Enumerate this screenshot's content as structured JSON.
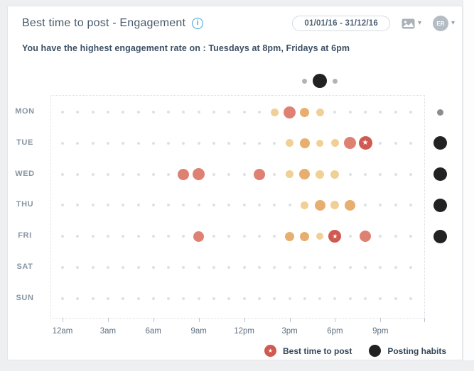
{
  "icons": {
    "star": "★",
    "caret": "▾",
    "info": "i"
  },
  "header": {
    "title": "Best time to post - Engagement",
    "date_range": "01/01/16 - 31/12/16",
    "avatar_initials": "ER"
  },
  "subtitle": "You have the highest engagement rate on : Tuesdays at 8pm, Fridays at 6pm",
  "legend": {
    "best_time": "Best time to post",
    "posting_habits": "Posting habits"
  },
  "chart_data": {
    "type": "scatter",
    "title": "Best time to post - Engagement",
    "x_tick_labels": [
      "12am",
      "3am",
      "6am",
      "9am",
      "12pm",
      "3pm",
      "6pm",
      "9pm"
    ],
    "x_tick_hours": [
      0,
      3,
      6,
      9,
      12,
      15,
      18,
      21
    ],
    "hours_per_row": 24,
    "day_labels": [
      "MON",
      "TUE",
      "WED",
      "THU",
      "FRI",
      "SAT",
      "SUN"
    ],
    "grid": "dotted-border",
    "legend_position": "bottom-right",
    "base_dot": {
      "size": 4,
      "color": "#dce1e7"
    },
    "colors": {
      "yellow": "#f0d096",
      "orange": "#e7ae6e",
      "red": "#de8172",
      "star": "#cf5a52",
      "habit": "#222222",
      "habit_low": "#8c8c8c",
      "top_low": "#b3b3b3"
    },
    "engagement": {
      "MON": [
        [
          14,
          11,
          "yellow"
        ],
        [
          15,
          17,
          "red"
        ],
        [
          16,
          13,
          "orange"
        ],
        [
          17,
          11,
          "yellow"
        ]
      ],
      "TUE": [
        [
          15,
          11,
          "yellow"
        ],
        [
          16,
          14,
          "orange"
        ],
        [
          17,
          10,
          "yellow"
        ],
        [
          18,
          11,
          "yellow"
        ],
        [
          19,
          17,
          "red"
        ],
        [
          20,
          19,
          "star"
        ]
      ],
      "WED": [
        [
          8,
          16,
          "red"
        ],
        [
          9,
          17,
          "red"
        ],
        [
          13,
          16,
          "red"
        ],
        [
          15,
          11,
          "yellow"
        ],
        [
          16,
          15,
          "orange"
        ],
        [
          17,
          12,
          "yellow"
        ],
        [
          18,
          12,
          "yellow"
        ]
      ],
      "THU": [
        [
          16,
          11,
          "yellow"
        ],
        [
          17,
          15,
          "orange"
        ],
        [
          18,
          12,
          "yellow"
        ],
        [
          19,
          15,
          "orange"
        ]
      ],
      "FRI": [
        [
          9,
          15,
          "red"
        ],
        [
          15,
          13,
          "orange"
        ],
        [
          16,
          13,
          "orange"
        ],
        [
          17,
          10,
          "yellow"
        ],
        [
          18,
          18,
          "star"
        ],
        [
          20,
          16,
          "red"
        ]
      ],
      "SAT": [],
      "SUN": []
    },
    "best_time_points": [
      {
        "day": "TUE",
        "hour": 20,
        "label": "Tuesdays at 8pm"
      },
      {
        "day": "FRI",
        "hour": 18,
        "label": "Fridays at 6pm"
      }
    ],
    "posting_habits_by_day": {
      "MON": [
        9,
        "habit_low"
      ],
      "TUE": [
        19,
        "habit"
      ],
      "WED": [
        19,
        "habit"
      ],
      "THU": [
        19,
        "habit"
      ],
      "FRI": [
        19,
        "habit"
      ],
      "SAT": null,
      "SUN": null
    },
    "posting_habits_by_hour": [
      [
        16,
        7,
        "top_low"
      ],
      [
        17,
        20,
        "habit"
      ],
      [
        18,
        7,
        "top_low"
      ]
    ]
  }
}
